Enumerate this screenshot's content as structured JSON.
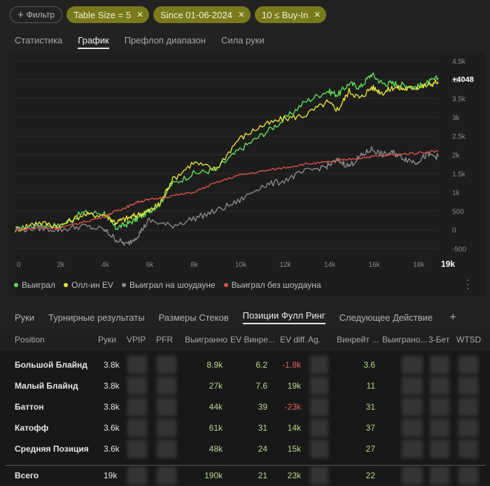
{
  "filters": {
    "add_label": "Фильтр",
    "chips": [
      "Table Size = 5",
      "Since 01-06-2024",
      "10 ≤ Buy-In"
    ]
  },
  "tabs_top": [
    "Статистика",
    "График",
    "Префлоп диапазон",
    "Сила руки"
  ],
  "active_top_tab": "График",
  "chart_data": {
    "type": "line",
    "x_ticks": [
      "0",
      "2k",
      "4k",
      "6k",
      "8k",
      "10k",
      "12k",
      "14k",
      "16k",
      "18k"
    ],
    "x_max_label": "19k",
    "y_ticks": [
      "4.5k",
      "4k",
      "3.5k",
      "3k",
      "2.5k",
      "2k",
      "1.5k",
      "1k",
      "500",
      "0",
      "-500"
    ],
    "xlim": [
      0,
      19000
    ],
    "ylim": [
      -500,
      4500
    ],
    "end_label": "+4048",
    "series": [
      {
        "name": "Выиграл",
        "color": "#5ee05a",
        "x": [
          0,
          1000,
          2000,
          3000,
          4000,
          4500,
          5000,
          5500,
          6000,
          6500,
          7000,
          8000,
          9000,
          10000,
          11000,
          12000,
          13000,
          14000,
          14500,
          15000,
          15500,
          16000,
          16500,
          17000,
          17500,
          18000,
          18500,
          19000
        ],
        "values": [
          0,
          150,
          100,
          450,
          450,
          50,
          150,
          300,
          500,
          700,
          1200,
          1500,
          1600,
          2100,
          2500,
          2900,
          3400,
          3700,
          3600,
          3900,
          3800,
          4150,
          3900,
          3900,
          3850,
          3800,
          3900,
          4048
        ]
      },
      {
        "name": "Олл-ин EV",
        "color": "#e6e23a",
        "x": [
          0,
          1000,
          2000,
          3000,
          4000,
          4500,
          5000,
          5500,
          6000,
          6500,
          7000,
          8000,
          9000,
          10000,
          11000,
          12000,
          13000,
          14000,
          14500,
          15000,
          15500,
          16000,
          16500,
          17000,
          17500,
          18000,
          18500,
          19000
        ],
        "values": [
          0,
          200,
          100,
          400,
          400,
          200,
          300,
          400,
          500,
          700,
          1300,
          1800,
          1600,
          2400,
          2750,
          2950,
          3050,
          3400,
          3200,
          3700,
          3500,
          3800,
          3650,
          3800,
          3750,
          3800,
          3850,
          3950
        ]
      },
      {
        "name": "Выиграл на шоудауне",
        "color": "#8a8a8a",
        "x": [
          0,
          1000,
          2000,
          3000,
          4000,
          4500,
          5000,
          5500,
          6000,
          7000,
          8000,
          9000,
          10000,
          11000,
          12000,
          13000,
          14000,
          14500,
          15000,
          15500,
          16000,
          16500,
          17000,
          17500,
          18000,
          18500,
          19000
        ],
        "values": [
          0,
          50,
          0,
          100,
          0,
          -250,
          -400,
          -150,
          250,
          100,
          300,
          500,
          750,
          1150,
          1300,
          1550,
          1700,
          1850,
          1700,
          1950,
          2150,
          2000,
          2050,
          1900,
          1800,
          2000,
          1950
        ]
      },
      {
        "name": "Выиграл без шоудауна",
        "color": "#e0514b",
        "x": [
          0,
          1000,
          2000,
          3000,
          4000,
          4500,
          5000,
          5500,
          6000,
          7000,
          8000,
          9000,
          10000,
          11000,
          12000,
          13000,
          14000,
          15000,
          16000,
          17000,
          18000,
          19000
        ],
        "values": [
          0,
          50,
          50,
          200,
          350,
          500,
          600,
          750,
          800,
          900,
          1000,
          1250,
          1450,
          1550,
          1650,
          1750,
          1800,
          1880,
          1950,
          2000,
          2050,
          2100
        ]
      }
    ]
  },
  "tabs_bottom": [
    "Руки",
    "Турнирные результаты",
    "Размеры Стеков",
    "Позиции Фулл Ринг",
    "Следующее Действие"
  ],
  "active_bottom_tab": "Позиции Фулл Ринг",
  "table": {
    "columns": [
      "Position",
      "Руки",
      "VPIP",
      "PFR",
      "Выигранно",
      "EV Винре...",
      "EV diff.",
      "Ag.",
      "Винрейт ...",
      "Выиграно...",
      "3-Бет",
      "WTSD"
    ],
    "rows": [
      {
        "position": "Большой Блайнд",
        "hands": "3.8k",
        "won": "8.9k",
        "ev_winrate": "6.2",
        "ev_diff": "-1.8k",
        "ev_diff_color": "#e0645c",
        "winrate": "3.6"
      },
      {
        "position": "Малый Блайнд",
        "hands": "3.8k",
        "won": "27k",
        "ev_winrate": "7.6",
        "ev_diff": "19k",
        "ev_diff_color": "#b8d98c",
        "winrate": "11"
      },
      {
        "position": "Баттон",
        "hands": "3.8k",
        "won": "44k",
        "ev_winrate": "39",
        "ev_diff": "-23k",
        "ev_diff_color": "#e0645c",
        "winrate": "31"
      },
      {
        "position": "Катофф",
        "hands": "3.6k",
        "won": "61k",
        "ev_winrate": "31",
        "ev_diff": "14k",
        "ev_diff_color": "#b8d98c",
        "winrate": "37"
      },
      {
        "position": "Средняя Позиция",
        "hands": "3.6k",
        "won": "48k",
        "ev_winrate": "24",
        "ev_diff": "15k",
        "ev_diff_color": "#b8d98c",
        "winrate": "27"
      }
    ],
    "total": {
      "position": "Всего",
      "hands": "19k",
      "won": "190k",
      "ev_winrate": "21",
      "ev_diff": "23k",
      "ev_diff_color": "#b8d98c",
      "winrate": "22"
    }
  }
}
